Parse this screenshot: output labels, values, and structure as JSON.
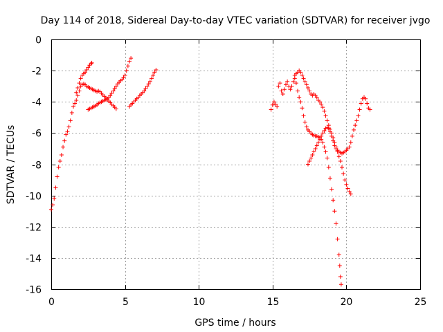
{
  "chart_data": {
    "type": "scatter",
    "title": "Day 114 of 2018, Sidereal Day-to-day VTEC variation (SDTVAR) for receiver jvgo",
    "xlabel": "GPS time / hours",
    "ylabel": "SDTVAR / TECUs",
    "xlim": [
      0,
      25
    ],
    "ylim": [
      -16,
      0
    ],
    "xticks": [
      0,
      5,
      10,
      15,
      20,
      25
    ],
    "yticks": [
      0,
      -2,
      -4,
      -6,
      -8,
      -10,
      -12,
      -14,
      -16
    ],
    "grid": true,
    "marker": "plus",
    "color": "#ff0000",
    "series": [
      {
        "points": [
          [
            0.0,
            -10.9
          ],
          [
            0.1,
            -10.6
          ],
          [
            0.2,
            -10.2
          ],
          [
            0.3,
            -9.5
          ],
          [
            0.4,
            -8.8
          ],
          [
            0.5,
            -8.2
          ],
          [
            0.6,
            -7.8
          ],
          [
            0.7,
            -7.4
          ],
          [
            0.8,
            -6.9
          ],
          [
            0.9,
            -6.5
          ],
          [
            1.0,
            -6.1
          ],
          [
            1.1,
            -5.9
          ],
          [
            1.2,
            -5.6
          ],
          [
            1.3,
            -5.2
          ],
          [
            1.4,
            -4.7
          ],
          [
            1.5,
            -4.3
          ],
          [
            1.6,
            -4.1
          ],
          [
            1.7,
            -3.9
          ],
          [
            1.8,
            -3.6
          ],
          [
            1.9,
            -3.3
          ],
          [
            2.0,
            -3.0
          ],
          [
            2.1,
            -2.9
          ],
          [
            2.2,
            -2.85
          ],
          [
            2.3,
            -2.9
          ],
          [
            2.4,
            -3.0
          ],
          [
            2.5,
            -3.05
          ],
          [
            2.6,
            -3.1
          ],
          [
            2.7,
            -3.15
          ],
          [
            2.8,
            -3.2
          ],
          [
            2.9,
            -3.25
          ],
          [
            3.0,
            -3.3
          ],
          [
            3.1,
            -3.35
          ],
          [
            3.2,
            -3.3
          ],
          [
            3.3,
            -3.35
          ],
          [
            3.4,
            -3.45
          ],
          [
            3.5,
            -3.55
          ],
          [
            3.6,
            -3.65
          ],
          [
            3.7,
            -3.75
          ],
          [
            3.8,
            -3.85
          ],
          [
            3.9,
            -3.95
          ],
          [
            4.0,
            -4.05
          ],
          [
            4.1,
            -4.15
          ],
          [
            4.2,
            -4.25
          ],
          [
            4.3,
            -4.35
          ],
          [
            4.4,
            -4.45
          ]
        ]
      },
      {
        "points": [
          [
            1.7,
            -3.4
          ],
          [
            1.8,
            -3.1
          ],
          [
            1.9,
            -2.8
          ],
          [
            2.0,
            -2.5
          ],
          [
            2.1,
            -2.3
          ],
          [
            2.2,
            -2.2
          ],
          [
            2.3,
            -2.1
          ],
          [
            2.4,
            -1.95
          ],
          [
            2.5,
            -1.8
          ],
          [
            2.6,
            -1.65
          ],
          [
            2.7,
            -1.55
          ],
          [
            2.75,
            -1.5
          ]
        ]
      },
      {
        "points": [
          [
            2.5,
            -4.5
          ],
          [
            2.6,
            -4.45
          ],
          [
            2.7,
            -4.4
          ],
          [
            2.8,
            -4.35
          ],
          [
            2.9,
            -4.3
          ],
          [
            3.0,
            -4.25
          ],
          [
            3.1,
            -4.2
          ],
          [
            3.2,
            -4.1
          ],
          [
            3.3,
            -4.05
          ],
          [
            3.4,
            -4.0
          ],
          [
            3.5,
            -3.95
          ],
          [
            3.6,
            -3.9
          ],
          [
            3.7,
            -3.85
          ],
          [
            3.8,
            -3.8
          ],
          [
            3.9,
            -3.7
          ],
          [
            4.0,
            -3.6
          ],
          [
            4.1,
            -3.45
          ],
          [
            4.2,
            -3.3
          ],
          [
            4.3,
            -3.15
          ],
          [
            4.4,
            -3.0
          ],
          [
            4.5,
            -2.85
          ],
          [
            4.6,
            -2.75
          ],
          [
            4.7,
            -2.65
          ],
          [
            4.8,
            -2.55
          ],
          [
            4.9,
            -2.45
          ],
          [
            5.0,
            -2.3
          ],
          [
            5.1,
            -2.0
          ],
          [
            5.2,
            -1.7
          ],
          [
            5.3,
            -1.4
          ],
          [
            5.4,
            -1.2
          ]
        ]
      },
      {
        "points": [
          [
            5.3,
            -4.3
          ],
          [
            5.4,
            -4.2
          ],
          [
            5.5,
            -4.1
          ],
          [
            5.6,
            -4.0
          ],
          [
            5.7,
            -3.9
          ],
          [
            5.8,
            -3.8
          ],
          [
            5.9,
            -3.7
          ],
          [
            6.0,
            -3.6
          ],
          [
            6.1,
            -3.5
          ],
          [
            6.2,
            -3.4
          ],
          [
            6.3,
            -3.3
          ],
          [
            6.4,
            -3.15
          ],
          [
            6.5,
            -3.0
          ],
          [
            6.6,
            -2.85
          ],
          [
            6.7,
            -2.7
          ],
          [
            6.8,
            -2.5
          ],
          [
            6.9,
            -2.3
          ],
          [
            7.0,
            -2.1
          ],
          [
            7.1,
            -1.95
          ]
        ]
      },
      {
        "points": [
          [
            14.9,
            -4.5
          ],
          [
            15.0,
            -4.2
          ],
          [
            15.1,
            -4.0
          ],
          [
            15.2,
            -4.15
          ],
          [
            15.3,
            -4.3
          ]
        ]
      },
      {
        "points": [
          [
            15.4,
            -3.0
          ],
          [
            15.5,
            -2.8
          ],
          [
            15.6,
            -3.3
          ],
          [
            15.7,
            -3.5
          ],
          [
            15.8,
            -3.2
          ],
          [
            15.9,
            -2.9
          ],
          [
            16.0,
            -2.7
          ],
          [
            16.1,
            -3.0
          ],
          [
            16.2,
            -3.2
          ],
          [
            16.3,
            -3.0
          ],
          [
            16.4,
            -2.7
          ],
          [
            16.5,
            -2.5
          ],
          [
            16.6,
            -2.8
          ],
          [
            16.7,
            -3.3
          ],
          [
            16.8,
            -3.7
          ],
          [
            16.9,
            -4.0
          ],
          [
            17.0,
            -4.4
          ],
          [
            17.1,
            -4.9
          ],
          [
            17.2,
            -5.3
          ],
          [
            17.3,
            -5.6
          ],
          [
            17.4,
            -5.8
          ],
          [
            17.5,
            -5.9
          ],
          [
            17.6,
            -6.0
          ],
          [
            17.7,
            -6.1
          ],
          [
            17.8,
            -6.15
          ],
          [
            17.9,
            -6.2
          ],
          [
            18.0,
            -6.2
          ],
          [
            18.1,
            -6.25
          ],
          [
            18.2,
            -6.3
          ],
          [
            18.3,
            -6.4
          ],
          [
            18.4,
            -6.6
          ],
          [
            18.5,
            -6.9
          ],
          [
            18.6,
            -7.2
          ],
          [
            18.7,
            -7.6
          ],
          [
            18.8,
            -8.2
          ],
          [
            18.9,
            -8.9
          ],
          [
            19.0,
            -9.6
          ],
          [
            19.1,
            -10.3
          ],
          [
            19.2,
            -11.0
          ],
          [
            19.3,
            -11.8
          ],
          [
            19.4,
            -12.8
          ],
          [
            19.5,
            -13.8
          ],
          [
            19.55,
            -14.5
          ],
          [
            19.6,
            -15.2
          ],
          [
            19.65,
            -15.7
          ]
        ]
      },
      {
        "points": [
          [
            16.5,
            -2.3
          ],
          [
            16.6,
            -2.2
          ],
          [
            16.7,
            -2.1
          ],
          [
            16.8,
            -2.0
          ],
          [
            16.9,
            -2.1
          ],
          [
            17.0,
            -2.3
          ],
          [
            17.1,
            -2.5
          ],
          [
            17.2,
            -2.7
          ],
          [
            17.3,
            -2.9
          ],
          [
            17.4,
            -3.1
          ],
          [
            17.5,
            -3.3
          ],
          [
            17.6,
            -3.5
          ],
          [
            17.7,
            -3.6
          ],
          [
            17.8,
            -3.5
          ],
          [
            17.9,
            -3.6
          ],
          [
            18.0,
            -3.7
          ],
          [
            18.1,
            -3.9
          ],
          [
            18.2,
            -4.0
          ],
          [
            18.3,
            -4.15
          ],
          [
            18.4,
            -4.35
          ],
          [
            18.5,
            -4.6
          ],
          [
            18.6,
            -4.9
          ],
          [
            18.7,
            -5.2
          ],
          [
            18.8,
            -5.5
          ],
          [
            18.9,
            -5.75
          ],
          [
            19.0,
            -6.0
          ],
          [
            19.1,
            -6.3
          ],
          [
            19.2,
            -6.6
          ],
          [
            19.3,
            -6.9
          ],
          [
            19.4,
            -7.2
          ],
          [
            19.5,
            -7.5
          ],
          [
            19.6,
            -7.8
          ],
          [
            19.7,
            -8.2
          ],
          [
            19.8,
            -8.6
          ],
          [
            19.9,
            -9.0
          ],
          [
            20.0,
            -9.3
          ],
          [
            20.1,
            -9.55
          ],
          [
            20.2,
            -9.75
          ],
          [
            20.3,
            -9.9
          ]
        ]
      },
      {
        "points": [
          [
            17.4,
            -8.0
          ],
          [
            17.5,
            -7.8
          ],
          [
            17.6,
            -7.6
          ],
          [
            17.7,
            -7.4
          ],
          [
            17.8,
            -7.2
          ],
          [
            17.9,
            -7.0
          ],
          [
            18.0,
            -6.8
          ],
          [
            18.1,
            -6.6
          ],
          [
            18.2,
            -6.4
          ],
          [
            18.3,
            -6.2
          ],
          [
            18.4,
            -6.0
          ],
          [
            18.5,
            -5.85
          ],
          [
            18.6,
            -5.7
          ],
          [
            18.7,
            -5.65
          ],
          [
            18.8,
            -5.7
          ],
          [
            18.9,
            -5.9
          ],
          [
            19.0,
            -6.2
          ],
          [
            19.1,
            -6.5
          ],
          [
            19.2,
            -6.8
          ],
          [
            19.3,
            -7.0
          ],
          [
            19.4,
            -7.1
          ],
          [
            19.5,
            -7.2
          ],
          [
            19.6,
            -7.25
          ],
          [
            19.7,
            -7.3
          ],
          [
            19.8,
            -7.25
          ],
          [
            19.9,
            -7.2
          ],
          [
            20.0,
            -7.1
          ],
          [
            20.1,
            -7.0
          ],
          [
            20.2,
            -6.9
          ],
          [
            20.3,
            -6.6
          ],
          [
            20.4,
            -6.2
          ],
          [
            20.5,
            -5.8
          ],
          [
            20.6,
            -5.5
          ],
          [
            20.7,
            -5.2
          ],
          [
            20.8,
            -4.9
          ],
          [
            20.9,
            -4.5
          ],
          [
            21.0,
            -4.1
          ],
          [
            21.1,
            -3.8
          ],
          [
            21.2,
            -3.7
          ],
          [
            21.3,
            -3.8
          ],
          [
            21.4,
            -4.1
          ],
          [
            21.5,
            -4.4
          ],
          [
            21.6,
            -4.5
          ]
        ]
      }
    ]
  }
}
